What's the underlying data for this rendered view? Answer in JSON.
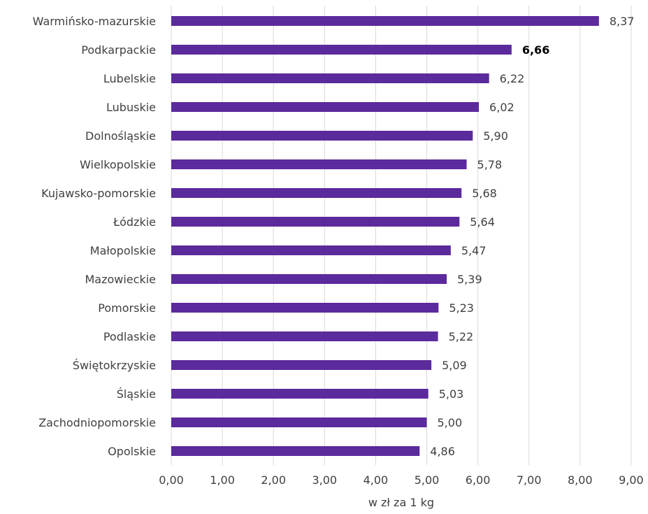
{
  "chart_data": {
    "type": "bar",
    "orientation": "horizontal",
    "categories": [
      "Warmińsko-mazurskie",
      "Podkarpackie",
      "Lubelskie",
      "Lubuskie",
      "Dolnośląskie",
      "Wielkopolskie",
      "Kujawsko-pomorskie",
      "Łódzkie",
      "Małopolskie",
      "Mazowieckie",
      "Pomorskie",
      "Podlaskie",
      "Świętokrzyskie",
      "Śląskie",
      "Zachodniopomorskie",
      "Opolskie"
    ],
    "values": [
      8.37,
      6.66,
      6.22,
      6.02,
      5.9,
      5.78,
      5.68,
      5.64,
      5.47,
      5.39,
      5.23,
      5.22,
      5.09,
      5.03,
      5.0,
      4.86
    ],
    "value_labels": [
      "8,37",
      "6,66",
      "6,22",
      "6,02",
      "5,90",
      "5,78",
      "5,68",
      "5,64",
      "5,47",
      "5,39",
      "5,23",
      "5,22",
      "5,09",
      "5,03",
      "5,00",
      "4,86"
    ],
    "highlighted_category": "Podkarpackie",
    "xlabel": "w zł za 1 kg",
    "xlim": [
      0,
      9
    ],
    "x_ticks": [
      0,
      1,
      2,
      3,
      4,
      5,
      6,
      7,
      8,
      9
    ],
    "x_tick_labels": [
      "0,00",
      "1,00",
      "2,00",
      "3,00",
      "4,00",
      "5,00",
      "6,00",
      "7,00",
      "8,00",
      "9,00"
    ],
    "grid": "vertical",
    "legend": "none",
    "bar_color": "#5b2a9c"
  }
}
